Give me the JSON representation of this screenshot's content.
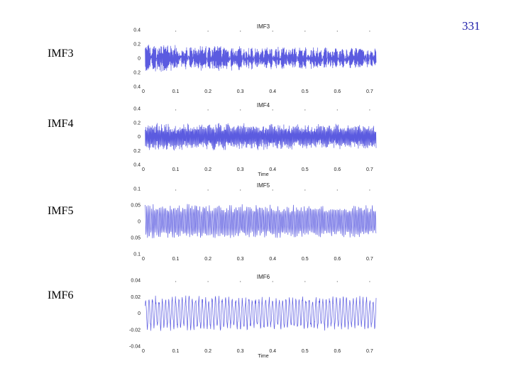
{
  "page": {
    "number": "331"
  },
  "colors": {
    "signal": "#5b5be0",
    "text_accent": "#1a1aa8"
  },
  "chart_data": [
    {
      "type": "line",
      "label": "IMF3",
      "title": "IMF3",
      "xlabel": "",
      "x_ticks": [
        "0",
        "0.1",
        "0.2",
        "0.3",
        "0.4",
        "0.5",
        "0.6",
        "0.7"
      ],
      "y_ticks": [
        "0.4",
        "0.2",
        "0",
        "0.2",
        "0.4"
      ],
      "xlim": [
        0,
        0.72
      ],
      "ylim": [
        -0.4,
        0.4
      ],
      "series": [
        {
          "amplitude": 0.2,
          "cycles": 420,
          "decay": 0.7
        }
      ]
    },
    {
      "type": "line",
      "label": "IMF4",
      "title": "IMF4",
      "xlabel": "Time",
      "x_ticks": [
        "0",
        "0.1",
        "0.2",
        "0.3",
        "0.4",
        "0.5",
        "0.6",
        "0.7"
      ],
      "y_ticks": [
        "0.4",
        "0.2",
        "0",
        "0.2",
        "0.4"
      ],
      "xlim": [
        0,
        0.72
      ],
      "ylim": [
        -0.4,
        0.4
      ],
      "series": [
        {
          "amplitude": 0.21,
          "cycles": 300,
          "decay": 0.85
        }
      ]
    },
    {
      "type": "line",
      "label": "IMF5",
      "title": "IMF5",
      "xlabel": "",
      "x_ticks": [
        "0",
        "0.1",
        "0.2",
        "0.3",
        "0.4",
        "0.5",
        "0.6",
        "0.7"
      ],
      "y_ticks": [
        "0.1",
        "0.05",
        "0",
        "0.05",
        "0.1"
      ],
      "xlim": [
        0,
        0.72
      ],
      "ylim": [
        -0.1,
        0.1
      ],
      "series": [
        {
          "amplitude": 0.055,
          "cycles": 150,
          "decay": 0.9
        }
      ]
    },
    {
      "type": "line",
      "label": "IMF6",
      "title": "IMF6",
      "xlabel": "Time",
      "x_ticks": [
        "0",
        "0.1",
        "0.2",
        "0.3",
        "0.4",
        "0.5",
        "0.6",
        "0.7"
      ],
      "y_ticks": [
        "0.04",
        "0.02",
        "0",
        "-0.02",
        "-0.04"
      ],
      "xlim": [
        0,
        0.72
      ],
      "ylim": [
        -0.04,
        0.04
      ],
      "series": [
        {
          "amplitude": 0.022,
          "cycles": 70,
          "decay": 0.95
        }
      ]
    }
  ]
}
